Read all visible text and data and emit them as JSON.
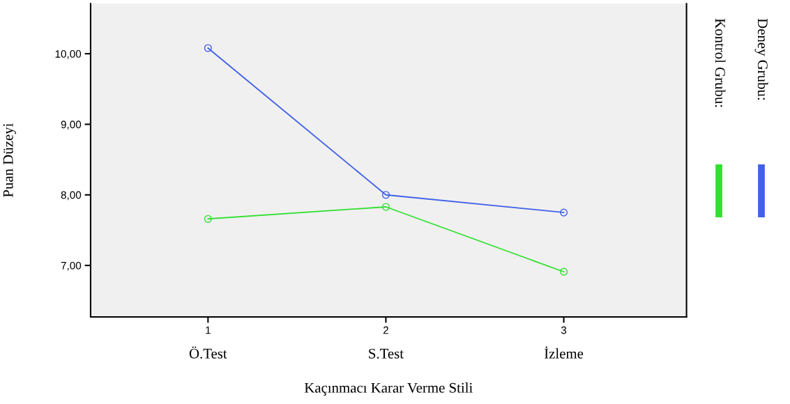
{
  "chart_data": {
    "type": "line",
    "xlabel": "Kaçınmacı Karar Verme Stili",
    "ylabel": "Puan Düzeyi",
    "x": [
      1,
      2,
      3
    ],
    "xlim": [
      0.34,
      3.69
    ],
    "xticks": [
      1,
      2,
      3
    ],
    "ylim": [
      6.27,
      10.71
    ],
    "yticks": [
      {
        "value": 7,
        "label": "7,00"
      },
      {
        "value": 8,
        "label": "8,00"
      },
      {
        "value": 9,
        "label": "9,00"
      },
      {
        "value": 10,
        "label": "10,00"
      }
    ],
    "series": [
      {
        "name": "Deney Grubu:",
        "color": "#4060e8",
        "values": [
          10.08,
          8.0,
          7.75
        ]
      },
      {
        "name": "Kontrol Grubu:",
        "color": "#30e030",
        "values": [
          7.66,
          7.83,
          6.91
        ]
      }
    ],
    "annotations": [
      "Ö.Test",
      "S.Test",
      "İzleme"
    ],
    "marker": "circle",
    "grid": false,
    "legend": "right"
  }
}
